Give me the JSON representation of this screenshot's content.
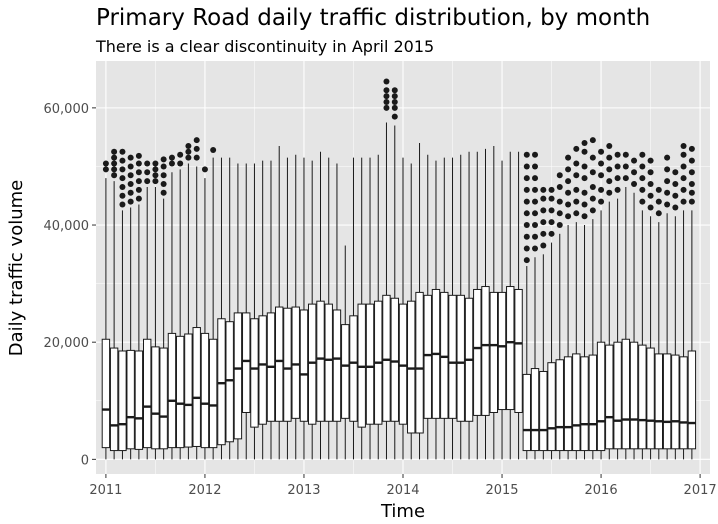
{
  "chart_data": {
    "type": "box",
    "title": "Primary Road daily traffic distribution, by month",
    "subtitle": "There is a clear discontinuity in April 2015",
    "xlabel": "Time",
    "ylabel": "Daily traffic volume",
    "xlim": [
      2010.9,
      2017.1
    ],
    "ylim": [
      -2500,
      68000
    ],
    "xticks": [
      2011,
      2012,
      2013,
      2014,
      2015,
      2016,
      2017
    ],
    "yticks": [
      0,
      20000,
      40000,
      60000
    ],
    "xtick_labels": [
      "2011",
      "2012",
      "2013",
      "2014",
      "2015",
      "2016",
      "2017"
    ],
    "ytick_labels": [
      "0",
      "20,000",
      "40,000",
      "60,000"
    ],
    "grid": true,
    "colors": {
      "panel": "#e5e5e5",
      "grid": "#ffffff",
      "box_fill": "#ffffff",
      "box_line": "#1a1a1a",
      "outlier": "#1a1a1a"
    },
    "series": [
      {
        "x": 2011.0,
        "q1": 2000,
        "median": 8500,
        "q3": 20500,
        "lower": 0,
        "upper": 48000,
        "outliers": [
          49500,
          50500
        ]
      },
      {
        "x": 2011.083,
        "q1": 1500,
        "median": 5800,
        "q3": 19000,
        "lower": 0,
        "upper": 47500,
        "outliers": [
          48500,
          49500,
          50500,
          51500,
          52500
        ]
      },
      {
        "x": 2011.167,
        "q1": 1500,
        "median": 6000,
        "q3": 18500,
        "lower": 0,
        "upper": 42500,
        "outliers": [
          43500,
          45000,
          46500,
          48000,
          49500,
          51000,
          52500
        ]
      },
      {
        "x": 2011.25,
        "q1": 1800,
        "median": 7200,
        "q3": 18600,
        "lower": 0,
        "upper": 43000,
        "outliers": [
          44000,
          45500,
          47000,
          48500,
          50000,
          51500
        ]
      },
      {
        "x": 2011.333,
        "q1": 1700,
        "median": 7000,
        "q3": 18500,
        "lower": 0,
        "upper": 43500,
        "outliers": [
          44500,
          46000,
          47500,
          49000,
          50500,
          51800
        ]
      },
      {
        "x": 2011.417,
        "q1": 2000,
        "median": 9000,
        "q3": 20500,
        "lower": 0,
        "upper": 46500,
        "outliers": [
          47500,
          49000,
          50500
        ]
      },
      {
        "x": 2011.5,
        "q1": 1800,
        "median": 7800,
        "q3": 19200,
        "lower": 0,
        "upper": 46500,
        "outliers": [
          47500,
          48500,
          49500,
          50500
        ]
      },
      {
        "x": 2011.583,
        "q1": 1800,
        "median": 7300,
        "q3": 19000,
        "lower": 0,
        "upper": 44500,
        "outliers": [
          45500,
          47000,
          48500,
          50000,
          51200
        ]
      },
      {
        "x": 2011.667,
        "q1": 2000,
        "median": 10000,
        "q3": 21500,
        "lower": 0,
        "upper": 49000,
        "outliers": [
          50500,
          51500
        ]
      },
      {
        "x": 2011.75,
        "q1": 2000,
        "median": 9500,
        "q3": 21000,
        "lower": 0,
        "upper": 49500,
        "outliers": [
          50500,
          52000
        ]
      },
      {
        "x": 2011.833,
        "q1": 2100,
        "median": 9300,
        "q3": 21400,
        "lower": 0,
        "upper": 50500,
        "outliers": [
          51500,
          52500,
          53500
        ]
      },
      {
        "x": 2011.917,
        "q1": 2200,
        "median": 10500,
        "q3": 22500,
        "lower": 0,
        "upper": 50000,
        "outliers": [
          51500,
          53000,
          54500
        ]
      },
      {
        "x": 2012.0,
        "q1": 2000,
        "median": 9500,
        "q3": 21500,
        "lower": 0,
        "upper": 48000,
        "outliers": [
          49500
        ]
      },
      {
        "x": 2012.083,
        "q1": 2000,
        "median": 9200,
        "q3": 20500,
        "lower": 0,
        "upper": 51500,
        "outliers": [
          52800
        ]
      },
      {
        "x": 2012.167,
        "q1": 2500,
        "median": 13000,
        "q3": 24000,
        "lower": 0,
        "upper": 51500,
        "outliers": []
      },
      {
        "x": 2012.25,
        "q1": 3000,
        "median": 13500,
        "q3": 23500,
        "lower": 0,
        "upper": 51500,
        "outliers": []
      },
      {
        "x": 2012.333,
        "q1": 3500,
        "median": 15500,
        "q3": 25000,
        "lower": 0,
        "upper": 50500,
        "outliers": []
      },
      {
        "x": 2012.417,
        "q1": 8000,
        "median": 16800,
        "q3": 25000,
        "lower": 0,
        "upper": 50500,
        "outliers": []
      },
      {
        "x": 2012.5,
        "q1": 5500,
        "median": 15500,
        "q3": 24000,
        "lower": 0,
        "upper": 50500,
        "outliers": []
      },
      {
        "x": 2012.583,
        "q1": 6000,
        "median": 16200,
        "q3": 24500,
        "lower": 0,
        "upper": 51000,
        "outliers": []
      },
      {
        "x": 2012.667,
        "q1": 6500,
        "median": 15800,
        "q3": 25000,
        "lower": 0,
        "upper": 51000,
        "outliers": []
      },
      {
        "x": 2012.75,
        "q1": 6500,
        "median": 16800,
        "q3": 26000,
        "lower": 0,
        "upper": 53500,
        "outliers": []
      },
      {
        "x": 2012.833,
        "q1": 6500,
        "median": 15500,
        "q3": 25800,
        "lower": 0,
        "upper": 51500,
        "outliers": []
      },
      {
        "x": 2012.917,
        "q1": 7000,
        "median": 16200,
        "q3": 26000,
        "lower": 0,
        "upper": 52000,
        "outliers": []
      },
      {
        "x": 2013.0,
        "q1": 6500,
        "median": 14500,
        "q3": 25500,
        "lower": 0,
        "upper": 51500,
        "outliers": []
      },
      {
        "x": 2013.083,
        "q1": 6000,
        "median": 16500,
        "q3": 26500,
        "lower": 0,
        "upper": 51000,
        "outliers": []
      },
      {
        "x": 2013.167,
        "q1": 6500,
        "median": 17200,
        "q3": 27000,
        "lower": 0,
        "upper": 52500,
        "outliers": []
      },
      {
        "x": 2013.25,
        "q1": 6500,
        "median": 17000,
        "q3": 26500,
        "lower": 0,
        "upper": 51500,
        "outliers": []
      },
      {
        "x": 2013.333,
        "q1": 6500,
        "median": 17200,
        "q3": 25500,
        "lower": 0,
        "upper": 50500,
        "outliers": []
      },
      {
        "x": 2013.417,
        "q1": 7000,
        "median": 16000,
        "q3": 23000,
        "lower": 0,
        "upper": 36500,
        "outliers": []
      },
      {
        "x": 2013.5,
        "q1": 6500,
        "median": 16500,
        "q3": 24500,
        "lower": 0,
        "upper": 51500,
        "outliers": []
      },
      {
        "x": 2013.583,
        "q1": 5500,
        "median": 15800,
        "q3": 26500,
        "lower": 0,
        "upper": 51500,
        "outliers": []
      },
      {
        "x": 2013.667,
        "q1": 6000,
        "median": 15800,
        "q3": 26500,
        "lower": 0,
        "upper": 51500,
        "outliers": []
      },
      {
        "x": 2013.75,
        "q1": 6000,
        "median": 16500,
        "q3": 27000,
        "lower": 0,
        "upper": 52000,
        "outliers": []
      },
      {
        "x": 2013.833,
        "q1": 6500,
        "median": 17000,
        "q3": 28000,
        "lower": 0,
        "upper": 57500,
        "outliers": [
          60000,
          61000,
          62000,
          63000,
          64500
        ]
      },
      {
        "x": 2013.917,
        "q1": 6500,
        "median": 16700,
        "q3": 27500,
        "lower": 0,
        "upper": 57000,
        "outliers": [
          58500,
          60000,
          61000,
          62000,
          63000
        ]
      },
      {
        "x": 2014.0,
        "q1": 6000,
        "median": 16000,
        "q3": 26500,
        "lower": 0,
        "upper": 51500,
        "outliers": []
      },
      {
        "x": 2014.083,
        "q1": 4500,
        "median": 15500,
        "q3": 27000,
        "lower": 0,
        "upper": 50500,
        "outliers": []
      },
      {
        "x": 2014.167,
        "q1": 4500,
        "median": 15500,
        "q3": 28500,
        "lower": 0,
        "upper": 54000,
        "outliers": []
      },
      {
        "x": 2014.25,
        "q1": 7000,
        "median": 17800,
        "q3": 28000,
        "lower": 0,
        "upper": 52000,
        "outliers": []
      },
      {
        "x": 2014.333,
        "q1": 7000,
        "median": 18000,
        "q3": 29000,
        "lower": 0,
        "upper": 51000,
        "outliers": []
      },
      {
        "x": 2014.417,
        "q1": 7000,
        "median": 17500,
        "q3": 28500,
        "lower": 0,
        "upper": 51500,
        "outliers": []
      },
      {
        "x": 2014.5,
        "q1": 7000,
        "median": 16500,
        "q3": 28000,
        "lower": 0,
        "upper": 51500,
        "outliers": []
      },
      {
        "x": 2014.583,
        "q1": 6500,
        "median": 16500,
        "q3": 28000,
        "lower": 0,
        "upper": 52000,
        "outliers": []
      },
      {
        "x": 2014.667,
        "q1": 6500,
        "median": 17000,
        "q3": 27500,
        "lower": 0,
        "upper": 52500,
        "outliers": []
      },
      {
        "x": 2014.75,
        "q1": 7500,
        "median": 19000,
        "q3": 29000,
        "lower": 0,
        "upper": 52500,
        "outliers": []
      },
      {
        "x": 2014.833,
        "q1": 7500,
        "median": 19500,
        "q3": 29500,
        "lower": 0,
        "upper": 53000,
        "outliers": []
      },
      {
        "x": 2014.917,
        "q1": 8000,
        "median": 19500,
        "q3": 28500,
        "lower": 0,
        "upper": 53500,
        "outliers": []
      },
      {
        "x": 2015.0,
        "q1": 8500,
        "median": 19300,
        "q3": 28500,
        "lower": 0,
        "upper": 51000,
        "outliers": []
      },
      {
        "x": 2015.083,
        "q1": 8500,
        "median": 20000,
        "q3": 29500,
        "lower": 0,
        "upper": 52500,
        "outliers": []
      },
      {
        "x": 2015.167,
        "q1": 8000,
        "median": 19800,
        "q3": 29000,
        "lower": 0,
        "upper": 52500,
        "outliers": []
      },
      {
        "x": 2015.25,
        "q1": 1500,
        "median": 5000,
        "q3": 14500,
        "lower": 0,
        "upper": 33000,
        "outliers": [
          34000,
          36000,
          38000,
          40000,
          42000,
          44000,
          46000,
          48000,
          50000,
          52000
        ]
      },
      {
        "x": 2015.333,
        "q1": 1500,
        "median": 5000,
        "q3": 15500,
        "lower": 0,
        "upper": 34500,
        "outliers": [
          36000,
          38000,
          40000,
          42000,
          44000,
          46000,
          48000,
          50000,
          52000
        ]
      },
      {
        "x": 2015.417,
        "q1": 1500,
        "median": 5000,
        "q3": 15000,
        "lower": 0,
        "upper": 35000,
        "outliers": [
          36500,
          38500,
          40500,
          42500,
          44500,
          46000
        ]
      },
      {
        "x": 2015.5,
        "q1": 1500,
        "median": 5300,
        "q3": 16500,
        "lower": 0,
        "upper": 37000,
        "outliers": [
          38500,
          40500,
          42500,
          44500,
          46000
        ]
      },
      {
        "x": 2015.583,
        "q1": 1500,
        "median": 5500,
        "q3": 17000,
        "lower": 0,
        "upper": 38500,
        "outliers": [
          40000,
          42000,
          44000,
          46500,
          48500
        ]
      },
      {
        "x": 2015.667,
        "q1": 1500,
        "median": 5500,
        "q3": 17500,
        "lower": 0,
        "upper": 40000,
        "outliers": [
          41500,
          43500,
          45500,
          47500,
          49500,
          51500
        ]
      },
      {
        "x": 2015.75,
        "q1": 1500,
        "median": 5800,
        "q3": 18000,
        "lower": 0,
        "upper": 40500,
        "outliers": [
          42000,
          44000,
          46000,
          48500,
          50500,
          53000
        ]
      },
      {
        "x": 2015.833,
        "q1": 1500,
        "median": 6000,
        "q3": 17500,
        "lower": 0,
        "upper": 40000,
        "outliers": [
          41500,
          43500,
          45500,
          48000,
          50000,
          52500,
          54000
        ]
      },
      {
        "x": 2015.917,
        "q1": 1500,
        "median": 6000,
        "q3": 17800,
        "lower": 0,
        "upper": 41000,
        "outliers": [
          42500,
          44500,
          46500,
          49000,
          51500,
          54500
        ]
      },
      {
        "x": 2016.0,
        "q1": 1500,
        "median": 6500,
        "q3": 20000,
        "lower": 0,
        "upper": 42500,
        "outliers": [
          44000,
          46000,
          48500,
          50500,
          52500
        ]
      },
      {
        "x": 2016.083,
        "q1": 1800,
        "median": 7200,
        "q3": 19500,
        "lower": 0,
        "upper": 44000,
        "outliers": [
          45500,
          47500,
          49500,
          51500,
          53500
        ]
      },
      {
        "x": 2016.167,
        "q1": 1800,
        "median": 6600,
        "q3": 20000,
        "lower": 0,
        "upper": 44500,
        "outliers": [
          46000,
          48000,
          50000,
          52000
        ]
      },
      {
        "x": 2016.25,
        "q1": 1800,
        "median": 6800,
        "q3": 20500,
        "lower": 0,
        "upper": 46500,
        "outliers": [
          48000,
          50000,
          52000
        ]
      },
      {
        "x": 2016.333,
        "q1": 1800,
        "median": 6800,
        "q3": 20000,
        "lower": 0,
        "upper": 45500,
        "outliers": [
          47000,
          49000,
          51000
        ]
      },
      {
        "x": 2016.417,
        "q1": 1800,
        "median": 6700,
        "q3": 19500,
        "lower": 0,
        "upper": 42500,
        "outliers": [
          44000,
          46000,
          48000,
          50000,
          52000
        ]
      },
      {
        "x": 2016.5,
        "q1": 1800,
        "median": 6600,
        "q3": 19000,
        "lower": 0,
        "upper": 41500,
        "outliers": [
          43000,
          45000,
          47000,
          49000,
          51000
        ]
      },
      {
        "x": 2016.583,
        "q1": 1800,
        "median": 6500,
        "q3": 18000,
        "lower": 0,
        "upper": 40500,
        "outliers": [
          42000,
          44000,
          46000
        ]
      },
      {
        "x": 2016.667,
        "q1": 1800,
        "median": 6400,
        "q3": 18000,
        "lower": 0,
        "upper": 42000,
        "outliers": [
          43500,
          45500,
          47500,
          49500,
          51500
        ]
      },
      {
        "x": 2016.75,
        "q1": 1800,
        "median": 6500,
        "q3": 17800,
        "lower": 0,
        "upper": 41500,
        "outliers": [
          43000,
          45000,
          47000,
          49000
        ]
      },
      {
        "x": 2016.833,
        "q1": 1800,
        "median": 6300,
        "q3": 17500,
        "lower": 0,
        "upper": 42500,
        "outliers": [
          44000,
          46000,
          48000,
          50000,
          52000,
          53500
        ]
      },
      {
        "x": 2016.917,
        "q1": 1800,
        "median": 6200,
        "q3": 18500,
        "lower": 0,
        "upper": 42500,
        "outliers": [
          44000,
          45500,
          47000,
          49000,
          51000,
          53000
        ]
      }
    ]
  }
}
